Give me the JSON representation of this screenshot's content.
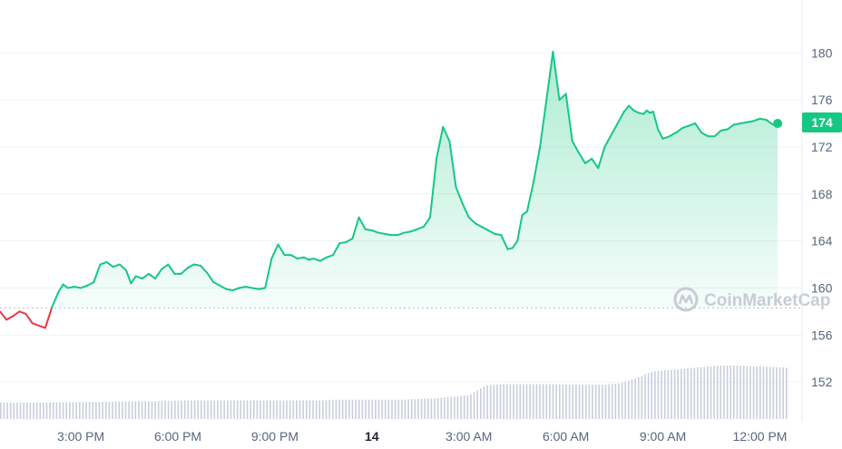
{
  "chart_data": {
    "type": "line",
    "y_ticks": [
      152,
      156,
      160,
      164,
      168,
      172,
      176,
      180
    ],
    "ylim": [
      149,
      184.5
    ],
    "x_ticks": [
      "3:00 PM",
      "6:00 PM",
      "9:00 PM",
      "14",
      "3:00 AM",
      "6:00 AM",
      "9:00 AM",
      "12:00 PM"
    ],
    "x_tick_hours": [
      15,
      18,
      21,
      24,
      27,
      30,
      33,
      36
    ],
    "xlim": [
      12.5,
      36.8
    ],
    "baseline": 158.3,
    "current_price": 174,
    "current_price_label": "174",
    "grid": true,
    "series": [
      {
        "x": [
          12.5,
          12.7,
          12.9,
          13.1,
          13.3,
          13.5,
          13.7,
          13.9,
          14.1,
          14.3,
          14.45,
          14.6,
          14.8,
          15.0,
          15.2,
          15.4,
          15.6,
          15.8,
          16.0,
          16.2,
          16.4,
          16.55,
          16.7,
          16.9,
          17.1,
          17.3,
          17.5,
          17.7,
          17.9,
          18.1,
          18.3,
          18.5,
          18.7,
          18.9,
          19.1,
          19.3,
          19.5,
          19.7,
          19.9,
          20.1,
          20.3,
          20.5,
          20.7,
          20.9,
          21.1,
          21.3,
          21.5,
          21.7,
          21.9,
          22.05,
          22.2,
          22.4,
          22.6,
          22.8,
          23.0,
          23.2,
          23.4,
          23.6,
          23.8,
          24.0,
          24.2,
          24.4,
          24.6,
          24.8,
          25.0,
          25.2,
          25.4,
          25.6,
          25.8,
          26.0,
          26.2,
          26.4,
          26.6,
          26.8,
          27.0,
          27.2,
          27.4,
          27.6,
          27.8,
          28.0,
          28.2,
          28.35,
          28.5,
          28.65,
          28.8,
          29.0,
          29.2,
          29.4,
          29.6,
          29.8,
          30.0,
          30.2,
          30.4,
          30.6,
          30.8,
          31.0,
          31.2,
          31.4,
          31.6,
          31.8,
          31.95,
          32.1,
          32.25,
          32.4,
          32.5,
          32.6,
          32.7,
          32.85,
          33.0,
          33.2,
          33.4,
          33.6,
          33.8,
          34.0,
          34.2,
          34.4,
          34.6,
          34.8,
          35.0,
          35.2,
          35.4,
          35.6,
          35.8,
          36.0,
          36.2,
          36.4,
          36.55
        ],
        "y": [
          158.0,
          157.3,
          157.6,
          158.0,
          157.8,
          157.0,
          156.8,
          156.6,
          158.3,
          159.6,
          160.3,
          160.0,
          160.1,
          160.0,
          160.2,
          160.5,
          162.0,
          162.2,
          161.8,
          162.0,
          161.5,
          160.4,
          161.0,
          160.8,
          161.2,
          160.8,
          161.6,
          162.0,
          161.2,
          161.2,
          161.7,
          162.0,
          161.9,
          161.3,
          160.5,
          160.2,
          159.9,
          159.8,
          160.0,
          160.1,
          160.0,
          159.9,
          160.0,
          162.5,
          163.7,
          162.8,
          162.8,
          162.5,
          162.6,
          162.4,
          162.5,
          162.3,
          162.6,
          162.8,
          163.8,
          163.9,
          164.2,
          166.0,
          165.0,
          164.9,
          164.7,
          164.6,
          164.5,
          164.5,
          164.7,
          164.8,
          165.0,
          165.2,
          166.0,
          171.0,
          173.7,
          172.5,
          168.6,
          167.2,
          166.0,
          165.5,
          165.2,
          164.9,
          164.6,
          164.5,
          163.3,
          163.4,
          164.0,
          166.2,
          166.5,
          169.0,
          172.0,
          176.0,
          180.1,
          176.0,
          176.5,
          172.5,
          171.5,
          170.6,
          171.0,
          170.2,
          172.0,
          173.0,
          174.0,
          175.0,
          175.5,
          175.1,
          174.9,
          174.8,
          175.1,
          174.9,
          175.0,
          173.5,
          172.7,
          172.9,
          173.2,
          173.6,
          173.8,
          174.0,
          173.2,
          172.9,
          172.9,
          173.4,
          173.5,
          173.9,
          174.0,
          174.1,
          174.2,
          174.4,
          174.3,
          173.9,
          174.0
        ],
        "volume_heights": [
          0.22,
          0.22,
          0.22,
          0.225,
          0.225,
          0.23,
          0.23,
          0.235,
          0.24,
          0.24,
          0.245,
          0.25,
          0.25,
          0.25,
          0.25,
          0.25,
          0.25,
          0.25,
          0.25,
          0.25,
          0.26,
          0.26,
          0.26,
          0.26,
          0.26,
          0.27,
          0.28,
          0.3,
          0.32,
          0.45,
          0.47,
          0.47,
          0.47,
          0.47,
          0.46,
          0.46,
          0.46,
          0.48,
          0.55,
          0.64,
          0.66,
          0.68,
          0.7,
          0.72,
          0.72,
          0.71,
          0.7,
          0.69
        ]
      }
    ],
    "watermark": "CoinMarketCap"
  },
  "colors": {
    "up": "#16c784",
    "down": "#ea3943",
    "grid": "#eff2f5",
    "axis_text": "#58667e",
    "volume": "#c9cedd"
  }
}
